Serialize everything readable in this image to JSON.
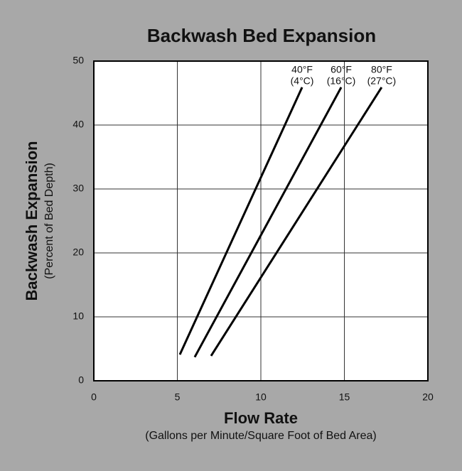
{
  "chart_data": {
    "type": "line",
    "title": "Backwash Bed Expansion",
    "x_label": "Flow Rate",
    "x_sublabel": "(Gallons per Minute/Square Foot of Bed Area)",
    "y_label": "Backwash Expansion",
    "y_sublabel": "(Percent of Bed Depth)",
    "xlim": [
      0,
      20
    ],
    "xticks": [
      0,
      5,
      10,
      15,
      20
    ],
    "ylim": [
      0,
      50
    ],
    "yticks": [
      0,
      10,
      20,
      30,
      40,
      50
    ],
    "grid": true,
    "series": [
      {
        "name": "40°F",
        "name_celsius": "(4°C)",
        "color": "#000000",
        "x": [
          5.15,
          12.47
        ],
        "values": [
          4.1,
          45.9
        ]
      },
      {
        "name": "60°F",
        "name_celsius": "(16°C)",
        "color": "#000000",
        "x": [
          6.04,
          14.81
        ],
        "values": [
          3.7,
          45.9
        ]
      },
      {
        "name": "80°F",
        "name_celsius": "(27°C)",
        "color": "#000000",
        "x": [
          7.02,
          17.23
        ],
        "values": [
          3.9,
          45.9
        ]
      }
    ]
  }
}
